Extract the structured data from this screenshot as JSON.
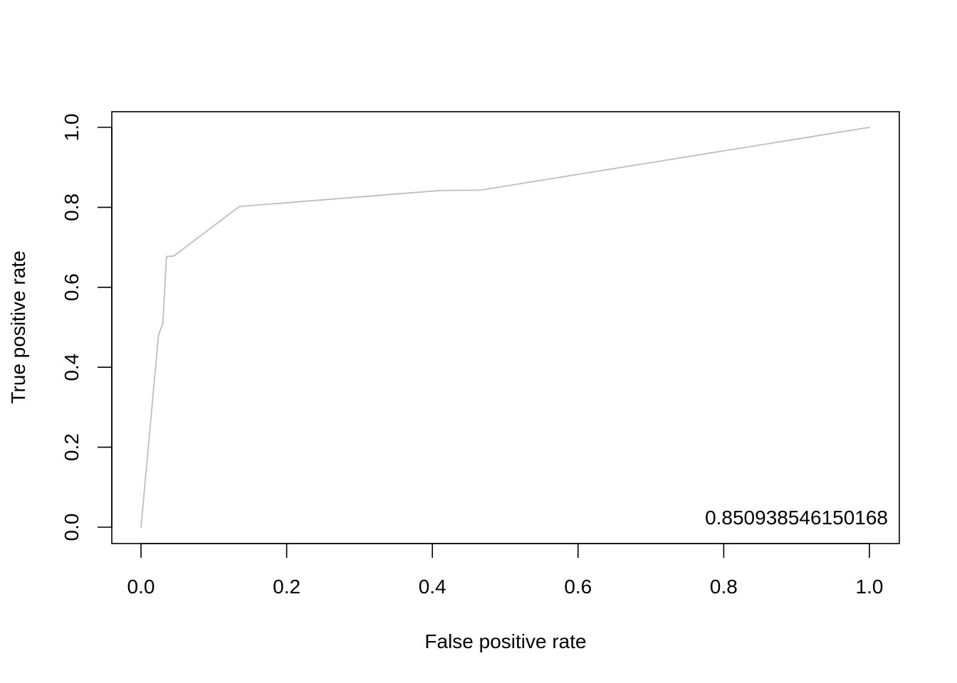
{
  "chart_data": {
    "type": "line",
    "title": "",
    "xlabel": "False positive rate",
    "ylabel": "True positive rate",
    "xlim": [
      0.0,
      1.0
    ],
    "ylim": [
      0.0,
      1.0
    ],
    "grid": false,
    "x_ticks": [
      0.0,
      0.2,
      0.4,
      0.6,
      0.8,
      1.0
    ],
    "x_tick_labels": [
      "0.0",
      "0.2",
      "0.4",
      "0.6",
      "0.8",
      "1.0"
    ],
    "y_ticks": [
      0.0,
      0.2,
      0.4,
      0.6,
      0.8,
      1.0
    ],
    "y_tick_labels": [
      "0.0",
      "0.2",
      "0.4",
      "0.6",
      "0.8",
      "1.0"
    ],
    "annotation": "0.850938546150168",
    "line_color": "#bebebe",
    "series": [
      {
        "x": [
          0.0,
          0.024,
          0.03,
          0.035,
          0.045,
          0.135,
          0.41,
          0.466,
          1.0
        ],
        "y": [
          0.0,
          0.48,
          0.51,
          0.677,
          0.678,
          0.802,
          0.842,
          0.843,
          1.0
        ]
      }
    ]
  }
}
